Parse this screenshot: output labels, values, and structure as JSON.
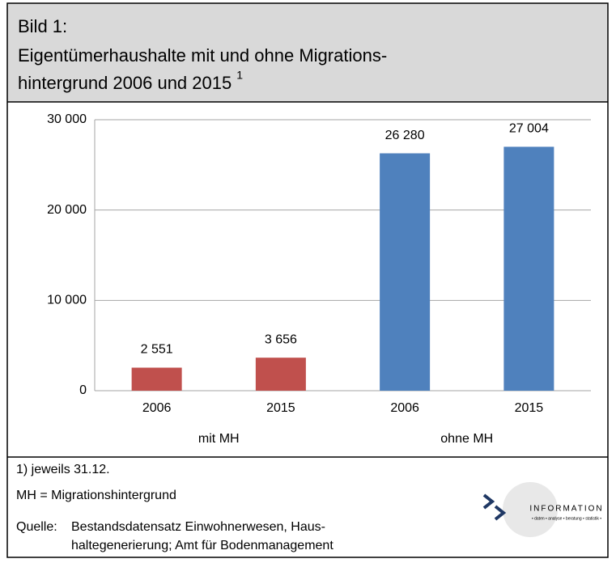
{
  "chart_data": {
    "type": "bar",
    "title": [
      "Bild 1:",
      "Eigentümerhaushalte mit und ohne Migrations-",
      "hintergrund 2006 und 2015"
    ],
    "title_note": "1",
    "categories": [
      "2006",
      "2015",
      "2006",
      "2015"
    ],
    "series": [
      {
        "name": "mit MH",
        "color": "#c0504d",
        "values": [
          2551,
          3656,
          null,
          null
        ],
        "value_labels": [
          "2 551",
          "3 656",
          null,
          null
        ]
      },
      {
        "name": "ohne MH",
        "color": "#4f81bd",
        "values": [
          null,
          null,
          26280,
          27004
        ],
        "value_labels": [
          null,
          null,
          "26 280",
          "27 004"
        ]
      }
    ],
    "ylim": [
      0,
      30000
    ],
    "yticks": [
      0,
      {
        "value": 10000,
        "label": "10 000"
      },
      {
        "value": 20000,
        "label": "20 000"
      },
      {
        "value": 30000,
        "label": "30 000"
      }
    ],
    "grid": true
  },
  "notes": [
    "1) jeweils 31.12.",
    "MH = Migrationshintergrund"
  ],
  "source": {
    "label": "Quelle:",
    "lines": [
      "Bestandsdatensatz Einwohnerwesen, Haus-",
      "haltegenerierung; Amt für Bodenmanagement"
    ]
  },
  "logo": {
    "name": "INFORMATION",
    "tagline": "• daten • analyse • beratung • statistik •"
  }
}
